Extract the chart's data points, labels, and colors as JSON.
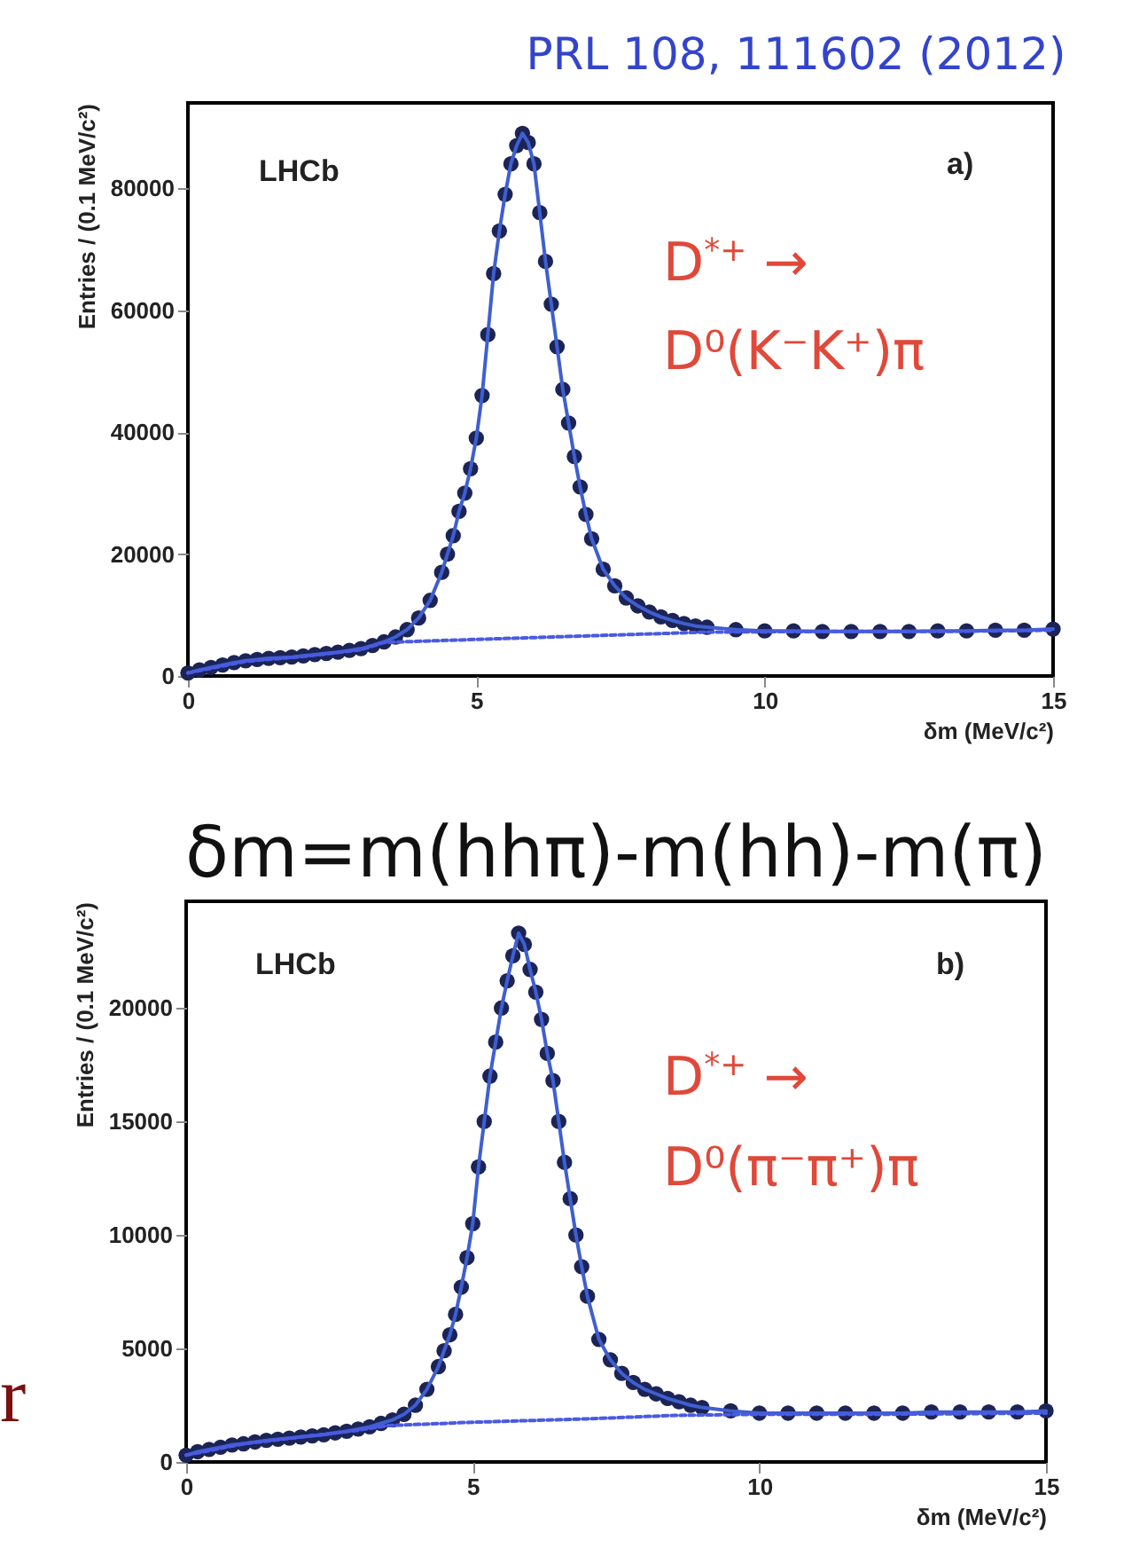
{
  "chart_data": [
    {
      "type": "scatter",
      "title": "PRL 108, 111602 (2012)",
      "xlabel": "δm (MeV/c²)",
      "ylabel": "Entries / (0.1 MeV/c²)",
      "annotations": [
        "LHCb",
        "a)",
        "D$^{*+}$ →",
        "D⁰(K⁻K⁺)π"
      ],
      "x": [
        0,
        0.2,
        0.4,
        0.6,
        0.8,
        1,
        1.2,
        1.4,
        1.6,
        1.8,
        2,
        2.2,
        2.4,
        2.6,
        2.8,
        3,
        3.2,
        3.4,
        3.6,
        3.8,
        4,
        4.2,
        4.4,
        4.5,
        4.6,
        4.7,
        4.8,
        4.9,
        5,
        5.1,
        5.2,
        5.3,
        5.4,
        5.5,
        5.6,
        5.7,
        5.8,
        5.9,
        6,
        6.1,
        6.2,
        6.3,
        6.4,
        6.5,
        6.6,
        6.7,
        6.8,
        6.9,
        7,
        7.2,
        7.4,
        7.6,
        7.8,
        8,
        8.2,
        8.4,
        8.6,
        8.8,
        9,
        9.5,
        10,
        10.5,
        11,
        11.5,
        12,
        12.5,
        13,
        13.5,
        14,
        14.5,
        15
      ],
      "series": [
        {
          "type": "scatter",
          "marker": "circle",
          "color": "#1c2456",
          "values": [
            500,
            1000,
            1400,
            1800,
            2200,
            2500,
            2700,
            2900,
            3000,
            3100,
            3300,
            3500,
            3700,
            3900,
            4200,
            4500,
            5000,
            5600,
            6400,
            7600,
            9500,
            12400,
            17000,
            20000,
            23000,
            27000,
            30000,
            34000,
            39000,
            46000,
            56000,
            66000,
            73000,
            79000,
            84000,
            87000,
            89000,
            87500,
            84000,
            76000,
            68000,
            61000,
            54000,
            47000,
            41500,
            36000,
            31000,
            26500,
            22500,
            17500,
            14800,
            12800,
            11500,
            10500,
            9700,
            9100,
            8600,
            8200,
            8000,
            7600,
            7400,
            7400,
            7300,
            7300,
            7300,
            7300,
            7400,
            7400,
            7500,
            7500,
            7700
          ]
        },
        {
          "type": "line",
          "color": "#3f5fd0",
          "values": [
            500,
            1000,
            1400,
            1800,
            2200,
            2500,
            2700,
            2900,
            3000,
            3100,
            3300,
            3500,
            3700,
            3900,
            4200,
            4500,
            5000,
            5600,
            6400,
            7600,
            9500,
            12400,
            17000,
            20000,
            23000,
            27000,
            30000,
            34000,
            39000,
            46000,
            56000,
            66000,
            73000,
            79000,
            84000,
            87000,
            89000,
            87500,
            84000,
            76000,
            68000,
            61000,
            54000,
            47000,
            41500,
            36000,
            31000,
            26500,
            22500,
            17500,
            14800,
            12800,
            11500,
            10500,
            9700,
            9100,
            8600,
            8200,
            8000,
            7600,
            7400,
            7400,
            7300,
            7300,
            7300,
            7300,
            7400,
            7400,
            7500,
            7500,
            7700
          ]
        },
        {
          "type": "line",
          "line_style": "dashed",
          "color": "#4a5ae0",
          "x": [
            0,
            1,
            2,
            3,
            3.4,
            5,
            7,
            9,
            11,
            13,
            15
          ],
          "values": [
            500,
            2400,
            3200,
            4300,
            5500,
            6000,
            6600,
            7200,
            7300,
            7300,
            7500
          ]
        }
      ],
      "xlim": [
        0,
        15
      ],
      "xticks": [
        0,
        5,
        10,
        15
      ],
      "ylim": [
        0,
        94000
      ],
      "yticks": [
        0,
        20000,
        40000,
        60000,
        80000
      ],
      "grid": false
    },
    {
      "type": "scatter",
      "title": "δm=m(hhπ)-m(hh)-m(π)",
      "xlabel": "δm (MeV/c²)",
      "ylabel": "Entries / (0.1 MeV/c²)",
      "annotations": [
        "LHCb",
        "b)",
        "D$^{*+}$ →",
        "D⁰(π⁻π⁺)π",
        "r"
      ],
      "x": [
        0,
        0.2,
        0.4,
        0.6,
        0.8,
        1,
        1.2,
        1.4,
        1.6,
        1.8,
        2,
        2.2,
        2.4,
        2.6,
        2.8,
        3,
        3.2,
        3.4,
        3.6,
        3.8,
        4,
        4.2,
        4.4,
        4.5,
        4.6,
        4.7,
        4.8,
        4.9,
        5,
        5.1,
        5.2,
        5.3,
        5.4,
        5.5,
        5.6,
        5.7,
        5.8,
        5.9,
        6,
        6.1,
        6.2,
        6.3,
        6.4,
        6.5,
        6.6,
        6.7,
        6.8,
        6.9,
        7,
        7.2,
        7.4,
        7.6,
        7.8,
        8,
        8.2,
        8.4,
        8.6,
        8.8,
        9,
        9.5,
        10,
        10.5,
        11,
        11.5,
        12,
        12.5,
        13,
        13.5,
        14,
        14.5,
        15
      ],
      "series": [
        {
          "type": "scatter",
          "marker": "circle",
          "color": "#1c2456",
          "values": [
            300,
            450,
            550,
            650,
            750,
            800,
            880,
            950,
            1000,
            1050,
            1100,
            1150,
            1200,
            1280,
            1350,
            1450,
            1550,
            1700,
            1850,
            2100,
            2500,
            3200,
            4200,
            4900,
            5600,
            6500,
            7700,
            9000,
            10500,
            13000,
            15000,
            17000,
            18500,
            20000,
            21200,
            22300,
            23300,
            22800,
            21700,
            20700,
            19500,
            18000,
            16800,
            15000,
            13200,
            11600,
            10000,
            8600,
            7300,
            5400,
            4500,
            3900,
            3500,
            3200,
            3000,
            2800,
            2650,
            2500,
            2400,
            2250,
            2150,
            2150,
            2150,
            2150,
            2150,
            2150,
            2200,
            2200,
            2200,
            2200,
            2250
          ]
        },
        {
          "type": "line",
          "color": "#3f5fd0",
          "values": [
            300,
            450,
            550,
            650,
            750,
            800,
            880,
            950,
            1000,
            1050,
            1100,
            1150,
            1200,
            1280,
            1350,
            1450,
            1550,
            1700,
            1850,
            2100,
            2500,
            3200,
            4200,
            4900,
            5600,
            6500,
            7700,
            9000,
            10500,
            13000,
            15000,
            17000,
            18500,
            20000,
            21200,
            22300,
            23300,
            22800,
            21700,
            20700,
            19500,
            18000,
            16800,
            15000,
            13200,
            11600,
            10000,
            8600,
            7300,
            5400,
            4500,
            3900,
            3500,
            3200,
            3000,
            2800,
            2650,
            2500,
            2400,
            2250,
            2150,
            2150,
            2150,
            2150,
            2150,
            2150,
            2200,
            2200,
            2200,
            2200,
            2250
          ]
        },
        {
          "type": "line",
          "line_style": "dashed",
          "color": "#4a5ae0",
          "x": [
            0,
            1,
            2,
            3,
            3.5,
            5,
            7,
            8.5,
            10,
            12,
            15
          ],
          "values": [
            300,
            800,
            1100,
            1400,
            1600,
            1750,
            1900,
            2050,
            2100,
            2100,
            2150
          ]
        }
      ],
      "xlim": [
        0,
        15
      ],
      "xticks": [
        0,
        5,
        10,
        15
      ],
      "ylim": [
        0,
        24700
      ],
      "yticks": [
        0,
        5000,
        10000,
        15000,
        20000
      ],
      "grid": false
    }
  ]
}
